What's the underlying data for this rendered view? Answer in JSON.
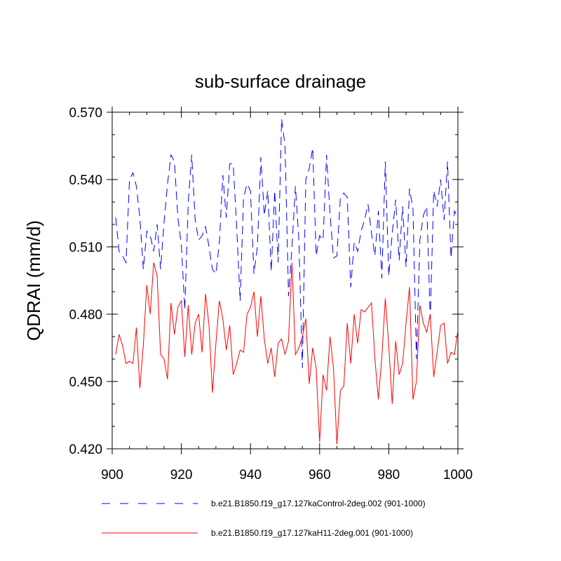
{
  "chart_data": {
    "type": "line",
    "title": "sub-surface drainage",
    "ylabel": "QDRAI  (mm/d)",
    "xlabel": "",
    "xlim": [
      900,
      1000
    ],
    "ylim": [
      0.42,
      0.57
    ],
    "xticks": [
      900,
      920,
      940,
      960,
      980,
      1000
    ],
    "xtick_labels": [
      "900",
      "920",
      "940",
      "960",
      "980",
      "1000"
    ],
    "yticks": [
      0.42,
      0.45,
      0.48,
      0.51,
      0.54,
      0.57
    ],
    "ytick_labels": [
      "0.420",
      "0.450",
      "0.480",
      "0.510",
      "0.540",
      "0.570"
    ],
    "x": [
      901,
      902,
      903,
      904,
      905,
      906,
      907,
      908,
      909,
      910,
      911,
      912,
      913,
      914,
      915,
      916,
      917,
      918,
      919,
      920,
      921,
      922,
      923,
      924,
      925,
      926,
      927,
      928,
      929,
      930,
      931,
      932,
      933,
      934,
      935,
      936,
      937,
      938,
      939,
      940,
      941,
      942,
      943,
      944,
      945,
      946,
      947,
      948,
      949,
      950,
      951,
      952,
      953,
      954,
      955,
      956,
      957,
      958,
      959,
      960,
      961,
      962,
      963,
      964,
      965,
      966,
      967,
      968,
      969,
      970,
      971,
      972,
      973,
      974,
      975,
      976,
      977,
      978,
      979,
      980,
      981,
      982,
      983,
      984,
      985,
      986,
      987,
      988,
      989,
      990,
      991,
      992,
      993,
      994,
      995,
      996,
      997,
      998,
      999,
      1000
    ],
    "series": [
      {
        "name": "b.e21.B1850.f19_g17.127kaControl-2deg.002 (901-1000)",
        "color": "#0000ff",
        "dash": "dashed",
        "values": [
          0.523,
          0.508,
          0.506,
          0.503,
          0.54,
          0.543,
          0.537,
          0.523,
          0.5,
          0.517,
          0.515,
          0.508,
          0.52,
          0.5,
          0.521,
          0.538,
          0.551,
          0.548,
          0.523,
          0.511,
          0.482,
          0.53,
          0.551,
          0.522,
          0.513,
          0.515,
          0.519,
          0.51,
          0.5,
          0.498,
          0.512,
          0.542,
          0.523,
          0.547,
          0.547,
          0.519,
          0.486,
          0.532,
          0.538,
          0.535,
          0.498,
          0.51,
          0.55,
          0.524,
          0.535,
          0.499,
          0.535,
          0.503,
          0.567,
          0.555,
          0.488,
          0.51,
          0.537,
          0.513,
          0.456,
          0.54,
          0.545,
          0.554,
          0.506,
          0.515,
          0.513,
          0.551,
          0.525,
          0.505,
          0.506,
          0.532,
          0.534,
          0.532,
          0.492,
          0.512,
          0.508,
          0.517,
          0.522,
          0.529,
          0.516,
          0.506,
          0.526,
          0.496,
          0.548,
          0.497,
          0.516,
          0.531,
          0.504,
          0.528,
          0.501,
          0.536,
          0.527,
          0.46,
          0.513,
          0.524,
          0.528,
          0.478,
          0.535,
          0.528,
          0.54,
          0.522,
          0.548,
          0.505,
          0.526,
          0.523
        ]
      },
      {
        "name": "b.e21.B1850.f19_g17.127kaH11-2deg.001 (901-1000)",
        "color": "#ff0000",
        "dash": "solid",
        "values": [
          0.462,
          0.471,
          0.466,
          0.458,
          0.459,
          0.458,
          0.474,
          0.447,
          0.466,
          0.493,
          0.48,
          0.503,
          0.497,
          0.462,
          0.46,
          0.451,
          0.485,
          0.471,
          0.483,
          0.486,
          0.461,
          0.484,
          0.462,
          0.476,
          0.48,
          0.463,
          0.489,
          0.475,
          0.445,
          0.467,
          0.486,
          0.478,
          0.464,
          0.475,
          0.453,
          0.458,
          0.464,
          0.463,
          0.48,
          0.483,
          0.49,
          0.47,
          0.488,
          0.469,
          0.458,
          0.465,
          0.452,
          0.467,
          0.469,
          0.462,
          0.468,
          0.503,
          0.462,
          0.465,
          0.47,
          0.478,
          0.449,
          0.465,
          0.456,
          0.423,
          0.453,
          0.446,
          0.47,
          0.456,
          0.422,
          0.446,
          0.448,
          0.476,
          0.458,
          0.48,
          0.467,
          0.482,
          0.481,
          0.483,
          0.485,
          0.46,
          0.442,
          0.461,
          0.487,
          0.466,
          0.44,
          0.468,
          0.453,
          0.458,
          0.476,
          0.492,
          0.442,
          0.45,
          0.484,
          0.476,
          0.472,
          0.48,
          0.452,
          0.463,
          0.475,
          0.476,
          0.458,
          0.463,
          0.462,
          0.473
        ]
      }
    ]
  }
}
